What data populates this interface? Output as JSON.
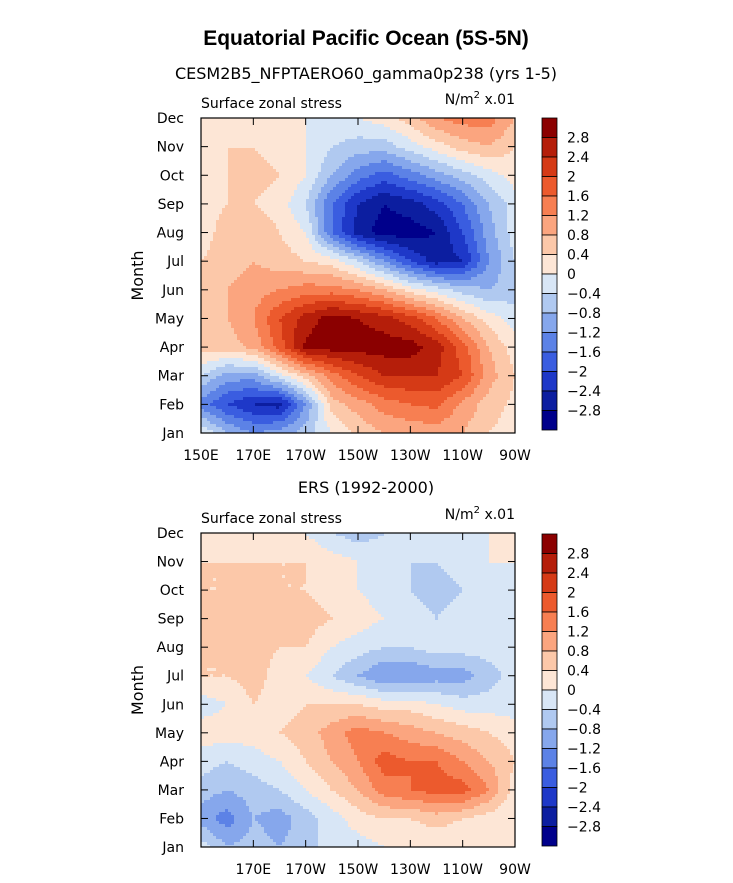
{
  "figure": {
    "title": "Equatorial Pacific Ocean (5S-5N)"
  },
  "chart_data": [
    {
      "type": "heatmap",
      "title": "CESM2B5_NFPTAERO60_gamma0p238 (yrs 1-5)",
      "left_label": "Surface zonal stress",
      "right_label": "N/m",
      "units_exponent": "2",
      "units_scale": "x.01",
      "ylabel": "Month",
      "xlabel": "",
      "x_ticks": [
        "150E",
        "170E",
        "170W",
        "150W",
        "130W",
        "110W",
        "90W"
      ],
      "x_range_deg_east": [
        150,
        270
      ],
      "y_ticks": [
        "Jan",
        "Feb",
        "Mar",
        "Apr",
        "May",
        "Jun",
        "Jul",
        "Aug",
        "Sep",
        "Oct",
        "Nov",
        "Dec"
      ],
      "colorbar_levels": [
        "2.8",
        "2.4",
        "2",
        "1.6",
        "1.2",
        "0.8",
        "0.4",
        "0",
        "−0.4",
        "−0.8",
        "−1.2",
        "−1.6",
        "−2",
        "−2.4",
        "−2.8"
      ],
      "colorbar_colors": [
        "#8b0000",
        "#b51e0a",
        "#d53a16",
        "#ec5a2d",
        "#f77f52",
        "#fba57f",
        "#fcc8a9",
        "#fde6d6",
        "#d8e6f6",
        "#b0c9f0",
        "#86a7ec",
        "#5c82e6",
        "#3a5de0",
        "#1e38c8",
        "#0c1ea0",
        "#00008b"
      ],
      "x_nodes_deg_east": [
        150,
        160,
        170,
        180,
        190,
        200,
        210,
        220,
        230,
        240,
        250,
        260,
        270
      ],
      "y_nodes_months": [
        "Jan",
        "Feb",
        "Mar",
        "Apr",
        "May",
        "Jun",
        "Jul",
        "Aug",
        "Sep",
        "Oct",
        "Nov",
        "Dec"
      ],
      "values": [
        [
          0.0,
          -0.8,
          -1.2,
          -1.0,
          -0.6,
          0.0,
          0.5,
          0.8,
          0.9,
          1.0,
          0.8,
          0.4,
          0.2
        ],
        [
          -1.4,
          -2.0,
          -2.4,
          -2.6,
          -1.2,
          0.6,
          1.0,
          1.4,
          1.6,
          1.7,
          1.1,
          0.6,
          0.3
        ],
        [
          -0.4,
          -1.0,
          -1.0,
          -0.2,
          0.6,
          1.4,
          2.0,
          2.4,
          2.4,
          2.4,
          2.0,
          1.0,
          0.4
        ],
        [
          0.6,
          0.6,
          0.9,
          1.8,
          2.9,
          3.0,
          3.0,
          3.0,
          3.0,
          2.6,
          1.8,
          0.8,
          0.2
        ],
        [
          0.6,
          0.8,
          1.2,
          2.0,
          2.6,
          3.0,
          2.8,
          2.6,
          2.2,
          1.6,
          0.8,
          0.2,
          -0.2
        ],
        [
          0.6,
          0.8,
          1.0,
          1.2,
          1.4,
          1.4,
          1.2,
          0.8,
          0.2,
          -0.2,
          -0.6,
          -0.8,
          -0.6
        ],
        [
          0.4,
          0.6,
          0.8,
          0.6,
          0.4,
          0.2,
          -0.4,
          -1.2,
          -2.0,
          -2.6,
          -2.4,
          -1.2,
          -0.4
        ],
        [
          0.2,
          0.6,
          0.8,
          0.4,
          0.0,
          -1.6,
          -2.6,
          -3.0,
          -3.0,
          -2.8,
          -2.0,
          -1.0,
          -0.2
        ],
        [
          0.2,
          0.4,
          0.4,
          0.2,
          -0.4,
          -1.6,
          -2.4,
          -2.8,
          -2.6,
          -2.2,
          -1.6,
          -0.8,
          -0.2
        ],
        [
          0.2,
          0.4,
          0.6,
          0.4,
          0.0,
          -0.8,
          -1.4,
          -1.8,
          -1.4,
          -1.0,
          -0.6,
          -0.2,
          0.2
        ],
        [
          0.2,
          0.4,
          0.4,
          0.2,
          0.0,
          -0.4,
          -0.6,
          -0.6,
          -0.2,
          0.2,
          0.6,
          0.8,
          0.4
        ],
        [
          0.2,
          0.4,
          0.2,
          0.2,
          0.0,
          0.0,
          0.0,
          0.2,
          0.6,
          1.2,
          1.4,
          1.4,
          0.8
        ]
      ]
    },
    {
      "type": "heatmap",
      "title": "ERS (1992-2000)",
      "left_label": "Surface zonal stress",
      "right_label": "N/m",
      "units_exponent": "2",
      "units_scale": "x.01",
      "ylabel": "Month",
      "xlabel": "",
      "x_ticks": [
        "",
        "170E",
        "170W",
        "150W",
        "130W",
        "110W",
        "90W"
      ],
      "x_range_deg_east": [
        150,
        270
      ],
      "y_ticks": [
        "Jan",
        "Feb",
        "Mar",
        "Apr",
        "May",
        "Jun",
        "Jul",
        "Aug",
        "Sep",
        "Oct",
        "Nov",
        "Dec"
      ],
      "colorbar_levels": [
        "2.8",
        "2.4",
        "2",
        "1.6",
        "1.2",
        "0.8",
        "0.4",
        "0",
        "−0.4",
        "−0.8",
        "−1.2",
        "−1.6",
        "−2",
        "−2.4",
        "−2.8"
      ],
      "colorbar_colors": [
        "#8b0000",
        "#b51e0a",
        "#d53a16",
        "#ec5a2d",
        "#f77f52",
        "#fba57f",
        "#fcc8a9",
        "#fde6d6",
        "#d8e6f6",
        "#b0c9f0",
        "#86a7ec",
        "#5c82e6",
        "#3a5de0",
        "#1e38c8",
        "#0c1ea0",
        "#00008b"
      ],
      "x_nodes_deg_east": [
        150,
        160,
        170,
        180,
        190,
        200,
        210,
        220,
        230,
        240,
        250,
        260,
        270
      ],
      "y_nodes_months": [
        "Jan",
        "Feb",
        "Mar",
        "Apr",
        "May",
        "Jun",
        "Jul",
        "Aug",
        "Sep",
        "Oct",
        "Nov",
        "Dec"
      ],
      "values": [
        [
          -0.2,
          -0.8,
          -0.6,
          -0.8,
          -0.6,
          -0.2,
          -0.2,
          0.0,
          0.0,
          0.0,
          0.0,
          0.0,
          0.0
        ],
        [
          -1.0,
          -1.4,
          -0.8,
          -1.0,
          -0.6,
          -0.2,
          0.2,
          0.4,
          0.4,
          0.6,
          0.4,
          0.2,
          0.0
        ],
        [
          -0.6,
          -0.8,
          -0.6,
          -0.4,
          0.0,
          0.4,
          0.8,
          1.4,
          1.6,
          1.8,
          1.8,
          1.2,
          0.2
        ],
        [
          -0.2,
          -0.4,
          -0.2,
          0.0,
          0.4,
          0.8,
          1.2,
          1.8,
          1.6,
          1.6,
          1.2,
          0.8,
          0.4
        ],
        [
          0.2,
          0.2,
          0.2,
          0.4,
          0.6,
          1.0,
          1.4,
          1.2,
          1.0,
          0.8,
          0.6,
          0.4,
          0.2
        ],
        [
          -0.2,
          0.0,
          0.4,
          0.2,
          0.4,
          0.4,
          0.4,
          0.2,
          0.2,
          0.0,
          -0.2,
          -0.2,
          -0.2
        ],
        [
          0.4,
          0.4,
          0.6,
          0.2,
          0.0,
          -0.4,
          -0.8,
          -1.2,
          -1.2,
          -1.0,
          -1.0,
          -0.6,
          -0.2
        ],
        [
          0.4,
          0.4,
          0.6,
          0.4,
          0.4,
          0.0,
          -0.2,
          -0.4,
          -0.4,
          -0.2,
          -0.2,
          -0.2,
          0.0
        ],
        [
          0.4,
          0.6,
          0.6,
          0.4,
          0.6,
          0.4,
          0.2,
          0.0,
          -0.2,
          -0.4,
          -0.2,
          0.0,
          0.0
        ],
        [
          0.4,
          0.4,
          0.6,
          0.4,
          0.4,
          0.2,
          0.0,
          -0.2,
          -0.4,
          -0.6,
          -0.4,
          -0.2,
          0.0
        ],
        [
          0.4,
          0.4,
          0.4,
          0.4,
          0.4,
          0.2,
          0.0,
          -0.2,
          -0.4,
          -0.4,
          -0.2,
          0.0,
          0.0
        ],
        [
          0.2,
          0.2,
          0.2,
          0.2,
          0.0,
          -0.4,
          -0.6,
          -0.4,
          -0.2,
          0.0,
          0.0,
          0.0,
          0.0
        ]
      ]
    }
  ]
}
